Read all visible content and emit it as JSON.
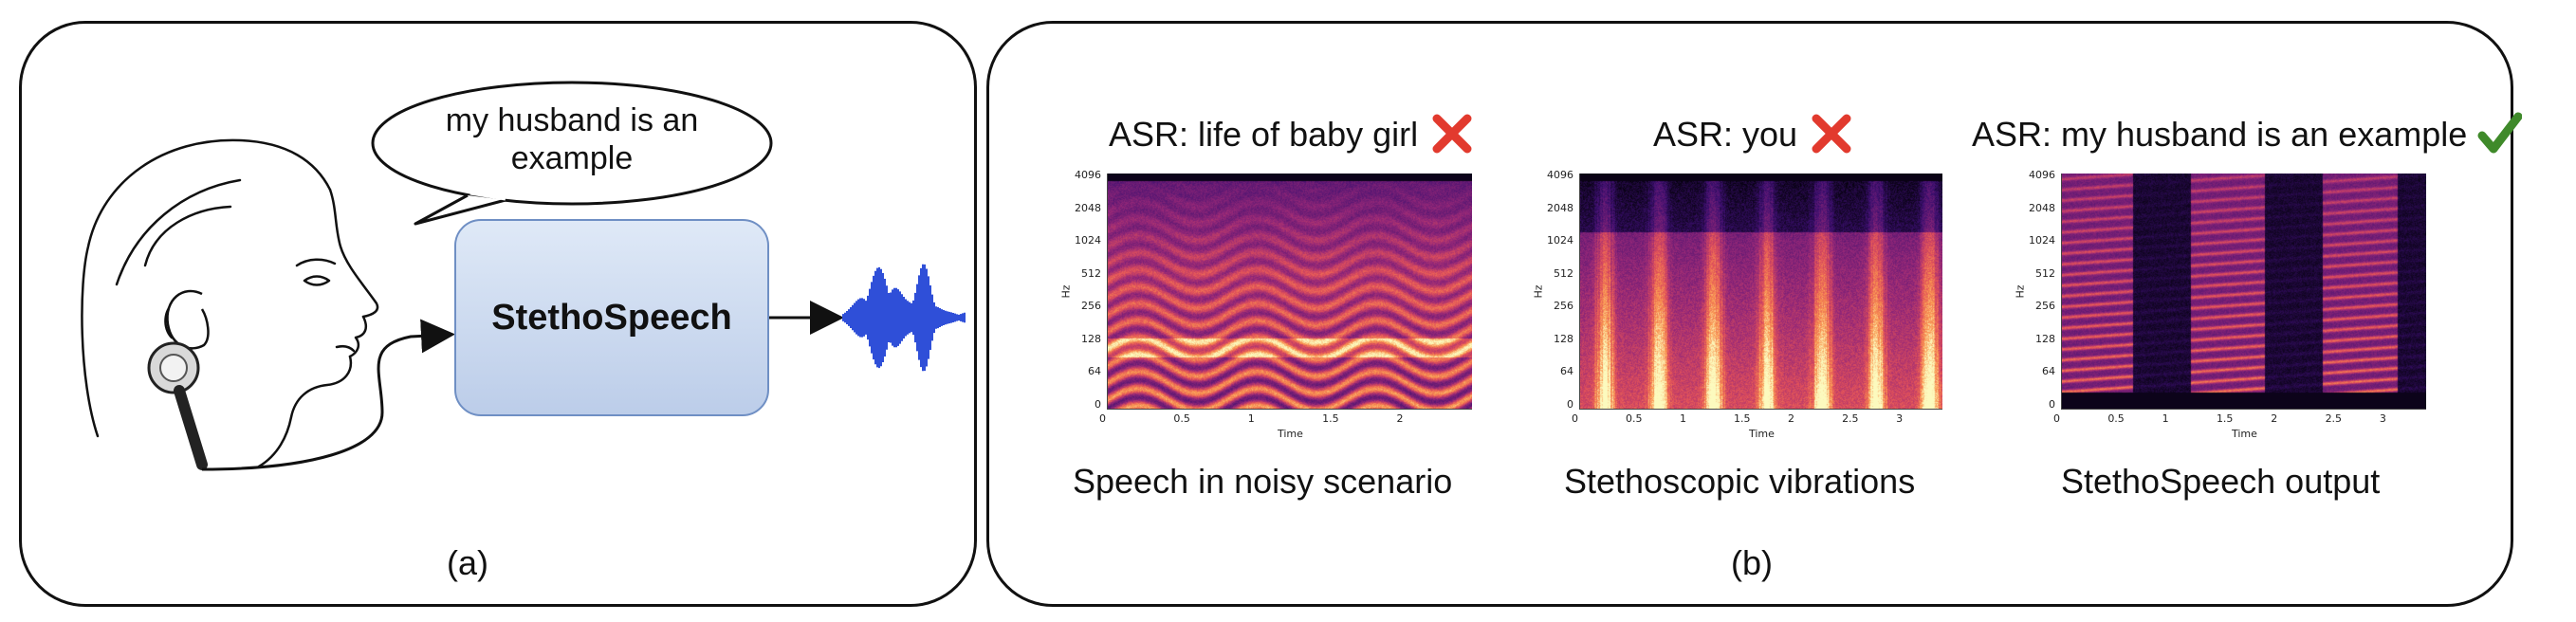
{
  "panel_a": {
    "speech_bubble": "my husband is an example",
    "box_label": "StethoSpeech",
    "sublabel": "(a)"
  },
  "panel_b": {
    "sublabel": "(b)",
    "columns": [
      {
        "asr": "ASR: life of baby girl",
        "status": "wrong",
        "caption": "Speech in noisy scenario",
        "x_ticks": [
          "0",
          "0.5",
          "1",
          "1.5",
          "2"
        ]
      },
      {
        "asr": "ASR: you",
        "status": "wrong",
        "caption": "Stethoscopic vibrations",
        "x_ticks": [
          "0",
          "0.5",
          "1",
          "1.5",
          "2",
          "2.5",
          "3"
        ]
      },
      {
        "asr": "ASR: my husband is an example",
        "status": "correct",
        "caption": "StethoSpeech output",
        "x_ticks": [
          "0",
          "0.5",
          "1",
          "1.5",
          "2",
          "2.5",
          "3"
        ]
      }
    ],
    "y_ticks": [
      "4096",
      "2048",
      "1024",
      "512",
      "256",
      "128",
      "64",
      "0"
    ],
    "x_axis_label": "Time",
    "y_axis_label": "Hz"
  },
  "colors": {
    "wrong_mark": "#e23a2e",
    "correct_mark": "#3f8a2a",
    "box_fill": "#cfdcf0",
    "box_border": "#6f8fc4",
    "waveform": "#2f4fd8"
  },
  "icons": [
    "human-head-icon",
    "stethoscope-icon",
    "waveform-icon",
    "cross-icon",
    "checkmark-icon"
  ]
}
